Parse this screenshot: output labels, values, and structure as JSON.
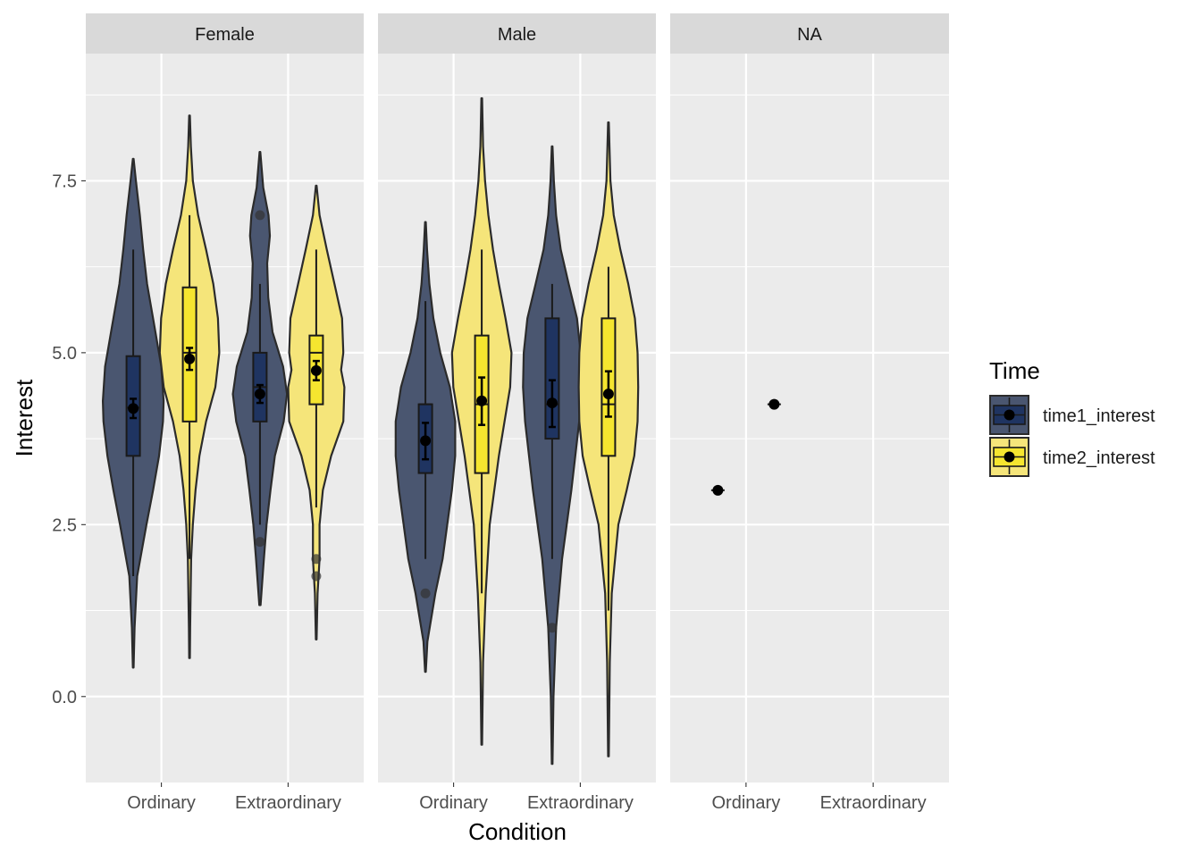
{
  "chart_data": {
    "type": "violin",
    "xlabel": "Condition",
    "ylabel": "Interest",
    "ylim": [
      -1.25,
      9.35
    ],
    "yticks": [
      0.0,
      2.5,
      5.0,
      7.5
    ],
    "ytick_labels": [
      "0.0",
      "2.5",
      "5.0",
      "7.5"
    ],
    "categories": [
      "Ordinary",
      "Extraordinary"
    ],
    "facets": [
      "Female",
      "Male",
      "NA"
    ],
    "legend": {
      "title": "Time",
      "position": "right",
      "entries": [
        {
          "name": "time1_interest",
          "color": "#1f3461"
        },
        {
          "name": "time2_interest",
          "color": "#f5e52f"
        }
      ]
    },
    "series": [
      {
        "name": "time1_interest",
        "fill": "#1f3461",
        "violin_fill": "#4a5670",
        "groups": [
          {
            "facet": "Female",
            "category": "Ordinary",
            "violin": {
              "ymin": 0.42,
              "ymax": 7.82,
              "profile": [
                [
                  0.42,
                  0.01
                ],
                [
                  1.0,
                  0.04
                ],
                [
                  1.75,
                  0.12
                ],
                [
                  2.5,
                  0.4
                ],
                [
                  3.0,
                  0.6
                ],
                [
                  3.5,
                  0.78
                ],
                [
                  4.0,
                  0.9
                ],
                [
                  4.3,
                  0.92
                ],
                [
                  4.8,
                  0.85
                ],
                [
                  5.5,
                  0.6
                ],
                [
                  6.0,
                  0.42
                ],
                [
                  6.5,
                  0.3
                ],
                [
                  7.0,
                  0.2
                ],
                [
                  7.5,
                  0.08
                ],
                [
                  7.82,
                  0.01
                ]
              ]
            },
            "box": {
              "q1": 3.5,
              "median": 4.2,
              "q3": 4.95,
              "whisker_low": 1.75,
              "whisker_high": 6.5
            },
            "mean": 4.19,
            "mean_ci": [
              4.05,
              4.33
            ],
            "outliers": []
          },
          {
            "facet": "Female",
            "category": "Extraordinary",
            "violin": {
              "ymin": 1.33,
              "ymax": 7.92,
              "profile": [
                [
                  1.33,
                  0.02
                ],
                [
                  2.0,
                  0.12
                ],
                [
                  2.5,
                  0.2
                ],
                [
                  3.0,
                  0.32
                ],
                [
                  3.5,
                  0.45
                ],
                [
                  4.0,
                  0.72
                ],
                [
                  4.4,
                  0.82
                ],
                [
                  4.8,
                  0.7
                ],
                [
                  5.3,
                  0.38
                ],
                [
                  5.8,
                  0.25
                ],
                [
                  6.3,
                  0.22
                ],
                [
                  6.7,
                  0.3
                ],
                [
                  7.0,
                  0.26
                ],
                [
                  7.4,
                  0.1
                ],
                [
                  7.92,
                  0.01
                ]
              ]
            },
            "box": {
              "q1": 4.0,
              "median": 4.5,
              "q3": 5.0,
              "whisker_low": 2.5,
              "whisker_high": 6.0
            },
            "mean": 4.4,
            "mean_ci": [
              4.27,
              4.53
            ],
            "outliers": [
              2.25,
              7.0
            ]
          },
          {
            "facet": "Male",
            "category": "Ordinary",
            "violin": {
              "ymin": 0.36,
              "ymax": 6.9,
              "profile": [
                [
                  0.36,
                  0.01
                ],
                [
                  0.8,
                  0.06
                ],
                [
                  1.5,
                  0.3
                ],
                [
                  2.0,
                  0.52
                ],
                [
                  2.5,
                  0.66
                ],
                [
                  3.0,
                  0.8
                ],
                [
                  3.5,
                  0.9
                ],
                [
                  4.0,
                  0.9
                ],
                [
                  4.5,
                  0.74
                ],
                [
                  5.0,
                  0.45
                ],
                [
                  5.5,
                  0.24
                ],
                [
                  6.0,
                  0.12
                ],
                [
                  6.5,
                  0.05
                ],
                [
                  6.9,
                  0.01
                ]
              ]
            },
            "box": {
              "q1": 3.25,
              "median": 4.25,
              "q3": 4.25,
              "whisker_low": 2.0,
              "whisker_high": 5.75
            },
            "mean": 3.72,
            "mean_ci": [
              3.45,
              3.98
            ],
            "outliers": [
              1.5
            ]
          },
          {
            "facet": "Male",
            "category": "Extraordinary",
            "violin": {
              "ymin": -0.98,
              "ymax": 8.0,
              "profile": [
                [
                  -0.98,
                  0.01
                ],
                [
                  0.0,
                  0.04
                ],
                [
                  1.0,
                  0.12
                ],
                [
                  2.0,
                  0.3
                ],
                [
                  3.0,
                  0.58
                ],
                [
                  4.0,
                  0.82
                ],
                [
                  4.5,
                  0.88
                ],
                [
                  5.0,
                  0.86
                ],
                [
                  5.5,
                  0.75
                ],
                [
                  6.0,
                  0.5
                ],
                [
                  6.5,
                  0.26
                ],
                [
                  7.0,
                  0.12
                ],
                [
                  7.5,
                  0.05
                ],
                [
                  8.0,
                  0.01
                ]
              ]
            },
            "box": {
              "q1": 3.75,
              "median": 4.25,
              "q3": 5.5,
              "whisker_low": 2.0,
              "whisker_high": 6.0
            },
            "mean": 4.27,
            "mean_ci": [
              3.92,
              4.6
            ],
            "outliers": [
              1.0
            ]
          },
          {
            "facet": "NA",
            "category": "Ordinary",
            "violin": null,
            "box": {
              "q1": 3.0,
              "median": 3.0,
              "q3": 3.0,
              "whisker_low": 3.0,
              "whisker_high": 3.0
            },
            "mean": 3.0,
            "mean_ci": [
              3.0,
              3.0
            ],
            "outliers": []
          }
        ]
      },
      {
        "name": "time2_interest",
        "fill": "#f5e52f",
        "violin_fill": "#f5e57a",
        "groups": [
          {
            "facet": "Female",
            "category": "Ordinary",
            "violin": {
              "ymin": 0.56,
              "ymax": 8.45,
              "profile": [
                [
                  0.56,
                  0.01
                ],
                [
                  1.0,
                  0.02
                ],
                [
                  2.0,
                  0.05
                ],
                [
                  2.5,
                  0.1
                ],
                [
                  3.0,
                  0.18
                ],
                [
                  3.5,
                  0.3
                ],
                [
                  4.0,
                  0.5
                ],
                [
                  4.5,
                  0.78
                ],
                [
                  5.0,
                  0.9
                ],
                [
                  5.5,
                  0.86
                ],
                [
                  6.0,
                  0.72
                ],
                [
                  6.5,
                  0.5
                ],
                [
                  7.0,
                  0.26
                ],
                [
                  7.5,
                  0.1
                ],
                [
                  8.0,
                  0.04
                ],
                [
                  8.45,
                  0.01
                ]
              ]
            },
            "box": {
              "q1": 4.0,
              "median": 5.0,
              "q3": 5.95,
              "whisker_low": 2.0,
              "whisker_high": 7.0
            },
            "mean": 4.91,
            "mean_ci": [
              4.75,
              5.07
            ],
            "outliers": []
          },
          {
            "facet": "Female",
            "category": "Extraordinary",
            "violin": {
              "ymin": 0.83,
              "ymax": 7.43,
              "profile": [
                [
                  0.83,
                  0.01
                ],
                [
                  1.5,
                  0.04
                ],
                [
                  2.0,
                  0.1
                ],
                [
                  2.5,
                  0.1
                ],
                [
                  3.0,
                  0.2
                ],
                [
                  3.5,
                  0.45
                ],
                [
                  4.0,
                  0.82
                ],
                [
                  4.5,
                  0.85
                ],
                [
                  4.75,
                  0.75
                ],
                [
                  5.0,
                  0.82
                ],
                [
                  5.5,
                  0.78
                ],
                [
                  6.0,
                  0.55
                ],
                [
                  6.5,
                  0.32
                ],
                [
                  7.0,
                  0.1
                ],
                [
                  7.43,
                  0.01
                ]
              ]
            },
            "box": {
              "q1": 4.25,
              "median": 5.0,
              "q3": 5.25,
              "whisker_low": 2.75,
              "whisker_high": 6.5
            },
            "mean": 4.74,
            "mean_ci": [
              4.6,
              4.88
            ],
            "outliers": [
              1.75,
              2.0
            ]
          },
          {
            "facet": "Male",
            "category": "Ordinary",
            "violin": {
              "ymin": -0.7,
              "ymax": 8.7,
              "profile": [
                [
                  -0.7,
                  0.01
                ],
                [
                  0.5,
                  0.04
                ],
                [
                  1.5,
                  0.12
                ],
                [
                  2.5,
                  0.24
                ],
                [
                  3.5,
                  0.52
                ],
                [
                  4.5,
                  0.86
                ],
                [
                  5.0,
                  0.9
                ],
                [
                  5.5,
                  0.72
                ],
                [
                  6.0,
                  0.52
                ],
                [
                  6.5,
                  0.34
                ],
                [
                  7.0,
                  0.2
                ],
                [
                  7.5,
                  0.1
                ],
                [
                  8.0,
                  0.04
                ],
                [
                  8.7,
                  0.01
                ]
              ]
            },
            "box": {
              "q1": 3.25,
              "median": 4.25,
              "q3": 5.25,
              "whisker_low": 1.5,
              "whisker_high": 6.5
            },
            "mean": 4.3,
            "mean_ci": [
              3.95,
              4.64
            ],
            "outliers": []
          },
          {
            "facet": "Male",
            "category": "Extraordinary",
            "violin": {
              "ymin": -0.87,
              "ymax": 8.35,
              "profile": [
                [
                  -0.87,
                  0.01
                ],
                [
                  0.5,
                  0.04
                ],
                [
                  1.5,
                  0.1
                ],
                [
                  2.5,
                  0.3
                ],
                [
                  3.0,
                  0.55
                ],
                [
                  3.5,
                  0.78
                ],
                [
                  4.0,
                  0.88
                ],
                [
                  4.5,
                  0.9
                ],
                [
                  5.0,
                  0.88
                ],
                [
                  5.5,
                  0.8
                ],
                [
                  6.0,
                  0.6
                ],
                [
                  6.5,
                  0.36
                ],
                [
                  7.0,
                  0.16
                ],
                [
                  7.5,
                  0.06
                ],
                [
                  8.35,
                  0.01
                ]
              ]
            },
            "box": {
              "q1": 3.5,
              "median": 4.25,
              "q3": 5.5,
              "whisker_low": 1.25,
              "whisker_high": 6.25
            },
            "mean": 4.4,
            "mean_ci": [
              4.07,
              4.73
            ],
            "outliers": []
          },
          {
            "facet": "NA",
            "category": "Ordinary",
            "violin": null,
            "box": {
              "q1": 4.25,
              "median": 4.25,
              "q3": 4.25,
              "whisker_low": 4.25,
              "whisker_high": 4.25
            },
            "mean": 4.25,
            "mean_ci": [
              4.25,
              4.25
            ],
            "outliers": []
          }
        ]
      }
    ]
  }
}
